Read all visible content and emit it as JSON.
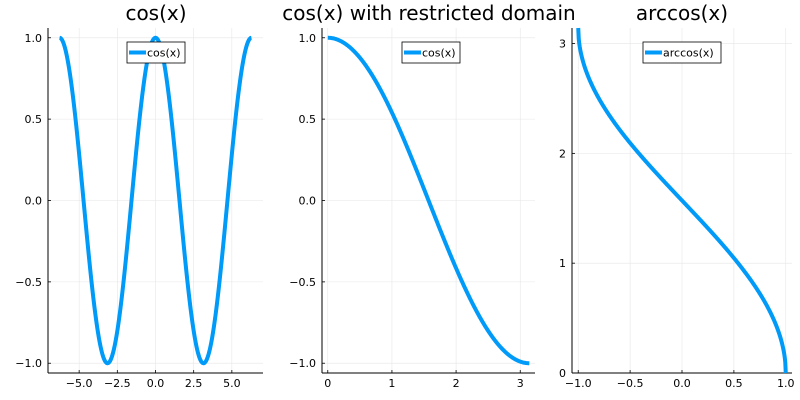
{
  "colors": {
    "series": "#009AF9"
  },
  "chart_data": [
    {
      "type": "line",
      "title": "cos(x)",
      "function": "cos",
      "x_range": [
        -6.283,
        6.283
      ],
      "xlim": [
        -7.04,
        7.04
      ],
      "ylim": [
        -1.06,
        1.06
      ],
      "xticks": [
        -5.0,
        -2.5,
        0.0,
        2.5,
        5.0
      ],
      "xtick_labels": [
        "−5.0",
        "−2.5",
        "0.0",
        "2.5",
        "5.0"
      ],
      "yticks": [
        -1.0,
        -0.5,
        0.0,
        0.5,
        1.0
      ],
      "ytick_labels": [
        "−1.0",
        "−0.5",
        "0.0",
        "0.5",
        "1.0"
      ],
      "grid": true,
      "legend": "top-center",
      "series": [
        {
          "name": "cos(x)",
          "x": [
            -6.283,
            -5.498,
            -4.712,
            -3.927,
            -3.142,
            -2.356,
            -1.571,
            -0.785,
            0.0,
            0.785,
            1.571,
            2.356,
            3.142,
            3.927,
            4.712,
            5.498,
            6.283
          ],
          "y": [
            1.0,
            0.707,
            0.0,
            -0.707,
            -1.0,
            -0.707,
            0.0,
            0.707,
            1.0,
            0.707,
            0.0,
            -0.707,
            -1.0,
            -0.707,
            0.0,
            0.707,
            1.0
          ]
        }
      ]
    },
    {
      "type": "line",
      "title": "cos(x) with restricted domain",
      "function": "cos",
      "x_range": [
        0,
        3.1416
      ],
      "xlim": [
        -0.09,
        3.23
      ],
      "ylim": [
        -1.06,
        1.06
      ],
      "xticks": [
        0,
        1,
        2,
        3
      ],
      "xtick_labels": [
        "0",
        "1",
        "2",
        "3"
      ],
      "yticks": [
        -1.0,
        -0.5,
        0.0,
        0.5,
        1.0
      ],
      "ytick_labels": [
        "−1.0",
        "−0.5",
        "0.0",
        "0.5",
        "1.0"
      ],
      "grid": true,
      "legend": "top-right",
      "series": [
        {
          "name": "cos(x)",
          "x": [
            0,
            0.5,
            1.0,
            1.5,
            2.0,
            2.5,
            3.0,
            3.1416
          ],
          "y": [
            1.0,
            0.878,
            0.54,
            0.071,
            -0.416,
            -0.801,
            -0.99,
            -1.0
          ]
        }
      ]
    },
    {
      "type": "line",
      "title": "arccos(x)",
      "function": "acos",
      "x_range": [
        -1,
        1
      ],
      "xlim": [
        -1.06,
        1.06
      ],
      "ylim": [
        0,
        3.1416
      ],
      "xticks": [
        -1.0,
        -0.5,
        0.0,
        0.5,
        1.0
      ],
      "xtick_labels": [
        "−1.0",
        "−0.5",
        "0.0",
        "0.5",
        "1.0"
      ],
      "yticks": [
        0,
        1,
        2,
        3
      ],
      "ytick_labels": [
        "0",
        "1",
        "2",
        "3"
      ],
      "grid": true,
      "legend": "top-right",
      "series": [
        {
          "name": "arccos(x)",
          "x": [
            -1.0,
            -0.75,
            -0.5,
            -0.25,
            0.0,
            0.25,
            0.5,
            0.75,
            1.0
          ],
          "y": [
            3.1416,
            2.419,
            2.094,
            1.823,
            1.571,
            1.318,
            1.047,
            0.723,
            0.0
          ]
        }
      ]
    }
  ]
}
